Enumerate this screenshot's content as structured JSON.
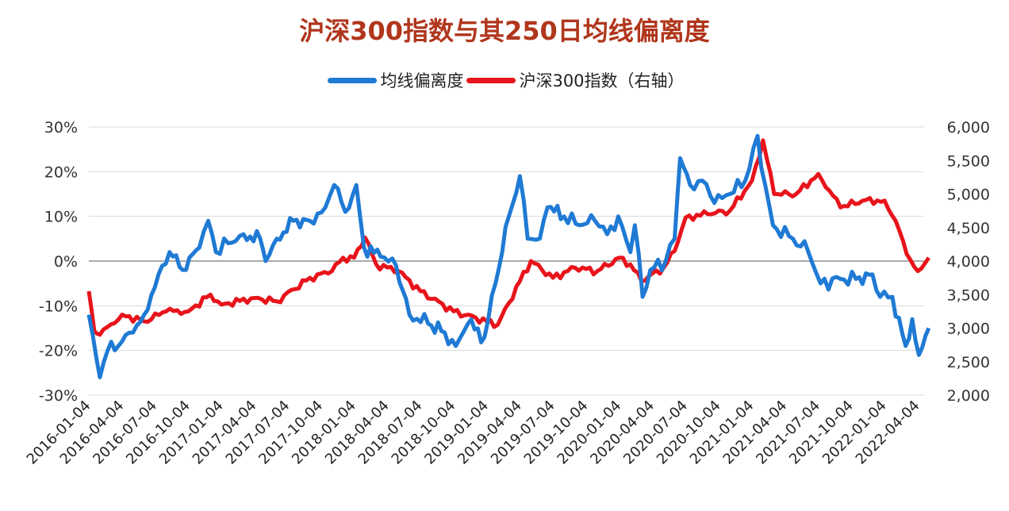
{
  "chart_data": {
    "type": "line",
    "title": "沪深300指数与其250日均线偏离度",
    "legend_position": "top",
    "colors": {
      "deviation": "#1f7ad4",
      "index": "#e8141b",
      "title": "#b0361c"
    },
    "x_tick_labels": [
      "2016-01-04",
      "2016-04-04",
      "2016-07-04",
      "2016-10-04",
      "2017-01-04",
      "2017-04-04",
      "2017-07-04",
      "2017-10-04",
      "2018-01-04",
      "2018-04-04",
      "2018-07-04",
      "2018-10-04",
      "2019-01-04",
      "2019-04-04",
      "2019-07-04",
      "2019-10-04",
      "2020-01-04",
      "2020-04-04",
      "2020-07-04",
      "2020-10-04",
      "2021-01-04",
      "2021-04-04",
      "2021-07-04",
      "2021-10-04",
      "2022-01-04",
      "2022-04-04"
    ],
    "x_unit": "months since 2016-01",
    "y_left": {
      "range": [
        -30,
        30
      ],
      "ticks": [
        30,
        20,
        10,
        0,
        -10,
        -20,
        -30
      ],
      "tick_labels": [
        "30%",
        "20%",
        "10%",
        "0%",
        "-10%",
        "-20%",
        "-30%"
      ]
    },
    "y_right": {
      "range": [
        2000,
        6000
      ],
      "ticks": [
        6000,
        5500,
        5000,
        4500,
        4000,
        3500,
        3000,
        2500,
        2000
      ],
      "tick_labels": [
        "6,000",
        "5,500",
        "5,000",
        "4,500",
        "4,000",
        "3,500",
        "3,000",
        "2,500",
        "2,000"
      ]
    },
    "series": [
      {
        "name": "均线偏离度",
        "axis": "left",
        "points": [
          [
            0,
            -12
          ],
          [
            0.7,
            -22
          ],
          [
            1,
            -26
          ],
          [
            1.7,
            -20
          ],
          [
            3,
            -18
          ],
          [
            4,
            -16
          ],
          [
            5,
            -12
          ],
          [
            6.3,
            -3
          ],
          [
            7.3,
            2
          ],
          [
            8.5,
            -2
          ],
          [
            10,
            3
          ],
          [
            10.8,
            9
          ],
          [
            11.5,
            2
          ],
          [
            12.6,
            4
          ],
          [
            14,
            6
          ],
          [
            15.5,
            5
          ],
          [
            16,
            0
          ],
          [
            17,
            5
          ],
          [
            18.5,
            9
          ],
          [
            20,
            9
          ],
          [
            21.4,
            12
          ],
          [
            22.2,
            17
          ],
          [
            23.2,
            11
          ],
          [
            24.2,
            17
          ],
          [
            24.9,
            3
          ],
          [
            26.4,
            1
          ],
          [
            27.8,
            -1
          ],
          [
            29,
            -12
          ],
          [
            30.7,
            -14
          ],
          [
            32.2,
            -16
          ],
          [
            33.2,
            -19
          ],
          [
            34.3,
            -14
          ],
          [
            35.8,
            -17
          ],
          [
            36.8,
            -5
          ],
          [
            38,
            10
          ],
          [
            39,
            19
          ],
          [
            39.7,
            5
          ],
          [
            40.8,
            5
          ],
          [
            41.5,
            12
          ],
          [
            43,
            10
          ],
          [
            44.4,
            8
          ],
          [
            45.8,
            9
          ],
          [
            46.9,
            6
          ],
          [
            47.9,
            10
          ],
          [
            49,
            2
          ],
          [
            49.4,
            8
          ],
          [
            50.1,
            -8
          ],
          [
            50.8,
            -2
          ],
          [
            52.2,
            0
          ],
          [
            53,
            5
          ],
          [
            53.5,
            23
          ],
          [
            54.4,
            17
          ],
          [
            55.5,
            18
          ],
          [
            56.6,
            13
          ],
          [
            58,
            15
          ],
          [
            59.4,
            18
          ],
          [
            60.5,
            28
          ],
          [
            61.2,
            17
          ],
          [
            61.9,
            8
          ],
          [
            63.7,
            5
          ],
          [
            65.1,
            2
          ],
          [
            66.2,
            -5
          ],
          [
            68,
            -4
          ],
          [
            69.4,
            -4
          ],
          [
            70.9,
            -3
          ],
          [
            71.6,
            -8
          ],
          [
            72.7,
            -8
          ],
          [
            73.9,
            -19
          ],
          [
            74.5,
            -13
          ],
          [
            75.1,
            -21
          ],
          [
            76,
            -15
          ]
        ]
      },
      {
        "name": "沪深300指数（右轴）",
        "axis": "right",
        "points": [
          [
            0,
            3550
          ],
          [
            0.5,
            2950
          ],
          [
            1,
            2900
          ],
          [
            3,
            3200
          ],
          [
            5,
            3100
          ],
          [
            7,
            3250
          ],
          [
            9,
            3250
          ],
          [
            11,
            3500
          ],
          [
            12,
            3350
          ],
          [
            15,
            3450
          ],
          [
            17,
            3400
          ],
          [
            20,
            3750
          ],
          [
            22,
            3850
          ],
          [
            23,
            4050
          ],
          [
            24,
            4050
          ],
          [
            25,
            4350
          ],
          [
            26,
            3950
          ],
          [
            28,
            3850
          ],
          [
            30,
            3550
          ],
          [
            33,
            3250
          ],
          [
            36,
            3100
          ],
          [
            37,
            3050
          ],
          [
            39,
            3700
          ],
          [
            40,
            4000
          ],
          [
            42,
            3750
          ],
          [
            44,
            3900
          ],
          [
            46,
            3850
          ],
          [
            48,
            4050
          ],
          [
            49,
            3950
          ],
          [
            50,
            3700
          ],
          [
            52,
            3900
          ],
          [
            53,
            4150
          ],
          [
            54,
            4650
          ],
          [
            56,
            4700
          ],
          [
            58,
            4750
          ],
          [
            60,
            5200
          ],
          [
            61,
            5800
          ],
          [
            62,
            5000
          ],
          [
            64,
            5000
          ],
          [
            66,
            5300
          ],
          [
            68,
            4800
          ],
          [
            70,
            4900
          ],
          [
            72,
            4900
          ],
          [
            73,
            4600
          ],
          [
            74,
            4100
          ],
          [
            75,
            3850
          ],
          [
            76,
            4050
          ]
        ]
      }
    ]
  }
}
